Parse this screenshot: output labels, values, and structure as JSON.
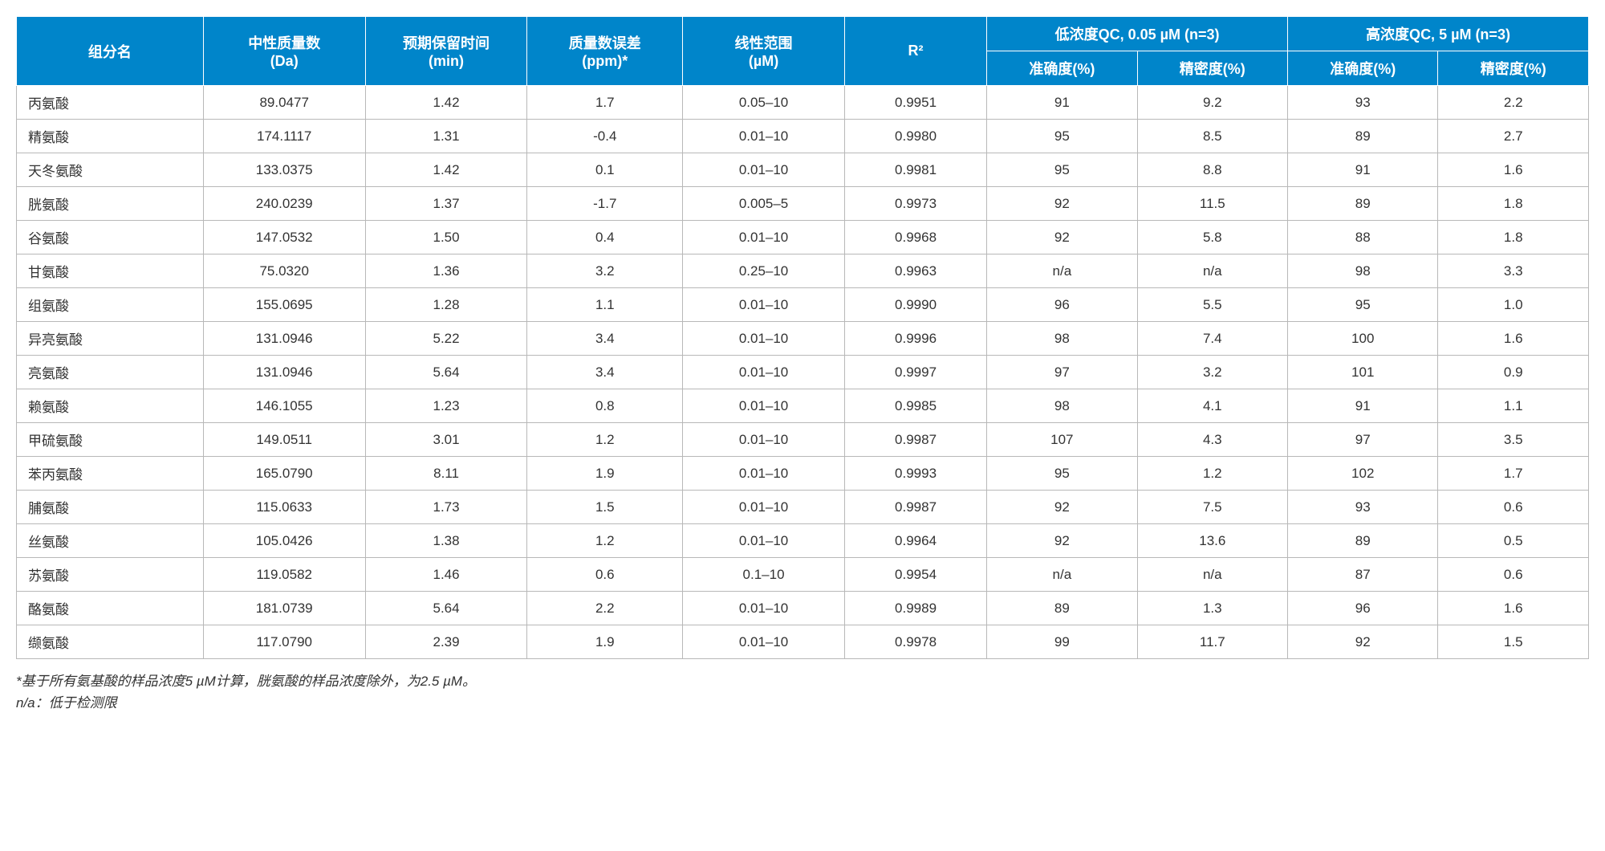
{
  "table": {
    "header_bg": "#0085ca",
    "header_fg": "#ffffff",
    "border_color": "#b8b8b8",
    "columns": {
      "name": "组分名",
      "mass": "中性质量数\n(Da)",
      "rt": "预期保留时间\n(min)",
      "err": "质量数误差\n(ppm)*",
      "range": "线性范围\n(µM)",
      "r2": "R²",
      "low_group": "低浓度QC, 0.05 µM (n=3)",
      "high_group": "高浓度QC, 5 µM (n=3)",
      "acc": "准确度(%)",
      "prec": "精密度(%)"
    },
    "rows": [
      {
        "name": "丙氨酸",
        "mass": "89.0477",
        "rt": "1.42",
        "err": "1.7",
        "range": "0.05–10",
        "r2": "0.9951",
        "la": "91",
        "lp": "9.2",
        "ha": "93",
        "hp": "2.2"
      },
      {
        "name": "精氨酸",
        "mass": "174.1117",
        "rt": "1.31",
        "err": "-0.4",
        "range": "0.01–10",
        "r2": "0.9980",
        "la": "95",
        "lp": "8.5",
        "ha": "89",
        "hp": "2.7"
      },
      {
        "name": "天冬氨酸",
        "mass": "133.0375",
        "rt": "1.42",
        "err": "0.1",
        "range": "0.01–10",
        "r2": "0.9981",
        "la": "95",
        "lp": "8.8",
        "ha": "91",
        "hp": "1.6"
      },
      {
        "name": "胱氨酸",
        "mass": "240.0239",
        "rt": "1.37",
        "err": "-1.7",
        "range": "0.005–5",
        "r2": "0.9973",
        "la": "92",
        "lp": "11.5",
        "ha": "89",
        "hp": "1.8"
      },
      {
        "name": "谷氨酸",
        "mass": "147.0532",
        "rt": "1.50",
        "err": "0.4",
        "range": "0.01–10",
        "r2": "0.9968",
        "la": "92",
        "lp": "5.8",
        "ha": "88",
        "hp": "1.8"
      },
      {
        "name": "甘氨酸",
        "mass": "75.0320",
        "rt": "1.36",
        "err": "3.2",
        "range": "0.25–10",
        "r2": "0.9963",
        "la": "n/a",
        "lp": "n/a",
        "ha": "98",
        "hp": "3.3"
      },
      {
        "name": "组氨酸",
        "mass": "155.0695",
        "rt": "1.28",
        "err": "1.1",
        "range": "0.01–10",
        "r2": "0.9990",
        "la": "96",
        "lp": "5.5",
        "ha": "95",
        "hp": "1.0"
      },
      {
        "name": "异亮氨酸",
        "mass": "131.0946",
        "rt": "5.22",
        "err": "3.4",
        "range": "0.01–10",
        "r2": "0.9996",
        "la": "98",
        "lp": "7.4",
        "ha": "100",
        "hp": "1.6"
      },
      {
        "name": "亮氨酸",
        "mass": "131.0946",
        "rt": "5.64",
        "err": "3.4",
        "range": "0.01–10",
        "r2": "0.9997",
        "la": "97",
        "lp": "3.2",
        "ha": "101",
        "hp": "0.9"
      },
      {
        "name": "赖氨酸",
        "mass": "146.1055",
        "rt": "1.23",
        "err": "0.8",
        "range": "0.01–10",
        "r2": "0.9985",
        "la": "98",
        "lp": "4.1",
        "ha": "91",
        "hp": "1.1"
      },
      {
        "name": "甲硫氨酸",
        "mass": "149.0511",
        "rt": "3.01",
        "err": "1.2",
        "range": "0.01–10",
        "r2": "0.9987",
        "la": "107",
        "lp": "4.3",
        "ha": "97",
        "hp": "3.5"
      },
      {
        "name": "苯丙氨酸",
        "mass": "165.0790",
        "rt": "8.11",
        "err": "1.9",
        "range": "0.01–10",
        "r2": "0.9993",
        "la": "95",
        "lp": "1.2",
        "ha": "102",
        "hp": "1.7"
      },
      {
        "name": "脯氨酸",
        "mass": "115.0633",
        "rt": "1.73",
        "err": "1.5",
        "range": "0.01–10",
        "r2": "0.9987",
        "la": "92",
        "lp": "7.5",
        "ha": "93",
        "hp": "0.6"
      },
      {
        "name": "丝氨酸",
        "mass": "105.0426",
        "rt": "1.38",
        "err": "1.2",
        "range": "0.01–10",
        "r2": "0.9964",
        "la": "92",
        "lp": "13.6",
        "ha": "89",
        "hp": "0.5"
      },
      {
        "name": "苏氨酸",
        "mass": "119.0582",
        "rt": "1.46",
        "err": "0.6",
        "range": "0.1–10",
        "r2": "0.9954",
        "la": "n/a",
        "lp": "n/a",
        "ha": "87",
        "hp": "0.6"
      },
      {
        "name": "酪氨酸",
        "mass": "181.0739",
        "rt": "5.64",
        "err": "2.2",
        "range": "0.01–10",
        "r2": "0.9989",
        "la": "89",
        "lp": "1.3",
        "ha": "96",
        "hp": "1.6"
      },
      {
        "name": "缬氨酸",
        "mass": "117.0790",
        "rt": "2.39",
        "err": "1.9",
        "range": "0.01–10",
        "r2": "0.9978",
        "la": "99",
        "lp": "11.7",
        "ha": "92",
        "hp": "1.5"
      }
    ]
  },
  "footnote": {
    "line1": "*基于所有氨基酸的样品浓度5 µM计算，胱氨酸的样品浓度除外，为2.5 µM。",
    "line2": "n/a：低于检测限"
  }
}
